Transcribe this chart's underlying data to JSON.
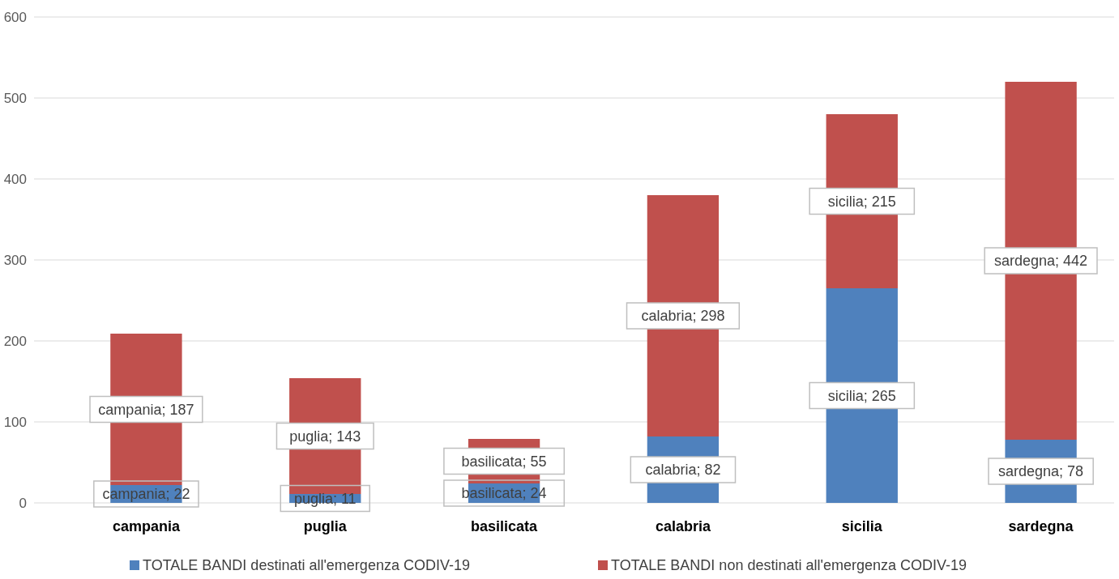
{
  "chart_data": {
    "type": "bar",
    "stacked": true,
    "categories": [
      "campania",
      "puglia",
      "basilicata",
      "calabria",
      "sicilia",
      "sardegna"
    ],
    "series": [
      {
        "name": "TOTALE BANDI destinati all'emergenza CODIV-19",
        "color": "#4f81bd",
        "values": [
          22,
          11,
          24,
          82,
          265,
          78
        ],
        "value_labels": [
          "campania; 22",
          "puglia; 11",
          "basilicata; 24",
          "calabria; 82",
          "sicilia; 265",
          "sardegna; 78"
        ]
      },
      {
        "name": "TOTALE BANDI non destinati all'emergenza CODIV-19",
        "color": "#c0504d",
        "values": [
          187,
          143,
          55,
          298,
          215,
          442
        ],
        "value_labels": [
          "campania; 187",
          "puglia; 143",
          "basilicata; 55",
          "calabria; 298",
          "sicilia; 215",
          "sardegna; 442"
        ]
      }
    ],
    "ylim": [
      0,
      600
    ],
    "yticks": [
      0,
      100,
      200,
      300,
      400,
      500,
      600
    ],
    "grid": "y",
    "legend": "bottom"
  }
}
